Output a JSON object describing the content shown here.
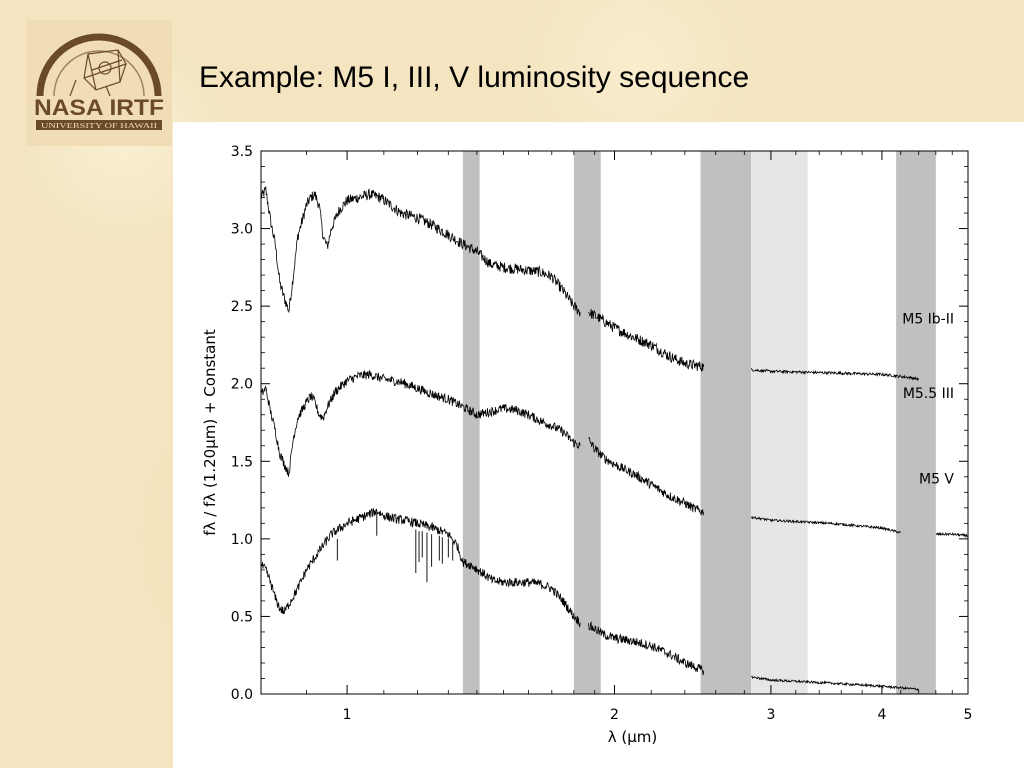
{
  "slide": {
    "title": "Example: M5 I, III, V luminosity sequence"
  },
  "logo": {
    "text": "NASA IRTF",
    "subtext": "UNIVERSITY OF HAWAII"
  },
  "colors": {
    "telluric_band": "#c0c0c0",
    "telluric_band_light": "#e6e6e6",
    "spectrum": "#000000",
    "logo_brown": "#6b4a2a"
  },
  "chart_data": {
    "type": "line",
    "title": "",
    "xlabel": "λ (μm)",
    "ylabel": "fλ / fλ (1.20μm) + Constant",
    "xscale": "log",
    "xlim": [
      0.8,
      5.0
    ],
    "ylim": [
      0.0,
      3.5
    ],
    "xticks": [
      1,
      2,
      3,
      4,
      5
    ],
    "xtick_labels": [
      "1",
      "2",
      "3",
      "4",
      "5"
    ],
    "yticks": [
      0.0,
      0.5,
      1.0,
      1.5,
      2.0,
      2.5,
      3.0,
      3.5
    ],
    "ytick_labels": [
      "0.0",
      "0.5",
      "1.0",
      "1.5",
      "2.0",
      "2.5",
      "3.0",
      "3.5"
    ],
    "grid": false,
    "legend": "none",
    "shaded_regions": [
      {
        "x": [
          1.35,
          1.41
        ],
        "shade": "dark"
      },
      {
        "x": [
          1.8,
          1.93
        ],
        "shade": "dark"
      },
      {
        "x": [
          2.5,
          2.85
        ],
        "shade": "dark"
      },
      {
        "x": [
          2.85,
          3.3
        ],
        "shade": "light"
      },
      {
        "x": [
          4.15,
          4.6
        ],
        "shade": "dark"
      }
    ],
    "series": [
      {
        "name": "M5 Ib-II",
        "noise": 0.035,
        "segments": [
          [
            [
              0.8,
              3.2
            ],
            [
              0.81,
              3.25
            ],
            [
              0.82,
              3.05
            ],
            [
              0.83,
              2.9
            ],
            [
              0.84,
              2.65
            ],
            [
              0.85,
              2.55
            ],
            [
              0.86,
              2.47
            ],
            [
              0.87,
              2.7
            ],
            [
              0.88,
              2.95
            ],
            [
              0.89,
              3.05
            ],
            [
              0.9,
              3.15
            ],
            [
              0.91,
              3.2
            ],
            [
              0.92,
              3.22
            ],
            [
              0.93,
              3.15
            ],
            [
              0.94,
              2.95
            ],
            [
              0.95,
              2.88
            ],
            [
              0.96,
              3.0
            ],
            [
              0.98,
              3.12
            ],
            [
              1.0,
              3.18
            ],
            [
              1.03,
              3.2
            ],
            [
              1.06,
              3.22
            ],
            [
              1.09,
              3.2
            ],
            [
              1.12,
              3.15
            ],
            [
              1.15,
              3.1
            ],
            [
              1.2,
              3.07
            ],
            [
              1.25,
              3.02
            ],
            [
              1.3,
              2.96
            ],
            [
              1.35,
              2.9
            ],
            [
              1.4,
              2.85
            ],
            [
              1.45,
              2.77
            ],
            [
              1.5,
              2.75
            ],
            [
              1.55,
              2.74
            ],
            [
              1.6,
              2.73
            ],
            [
              1.65,
              2.72
            ],
            [
              1.7,
              2.69
            ],
            [
              1.75,
              2.6
            ],
            [
              1.8,
              2.5
            ],
            [
              1.83,
              2.46
            ]
          ],
          [
            [
              1.87,
              2.46
            ],
            [
              1.9,
              2.44
            ],
            [
              1.95,
              2.4
            ],
            [
              2.0,
              2.36
            ],
            [
              2.1,
              2.3
            ],
            [
              2.2,
              2.25
            ],
            [
              2.3,
              2.18
            ],
            [
              2.4,
              2.13
            ],
            [
              2.45,
              2.12
            ],
            [
              2.52,
              2.11
            ]
          ],
          [
            [
              2.85,
              2.09
            ],
            [
              3.0,
              2.08
            ],
            [
              3.5,
              2.07
            ],
            [
              4.0,
              2.06
            ],
            [
              4.3,
              2.04
            ],
            [
              4.4,
              2.03
            ]
          ]
        ]
      },
      {
        "name": "M5.5 III",
        "noise": 0.03,
        "segments": [
          [
            [
              0.8,
              1.93
            ],
            [
              0.81,
              1.97
            ],
            [
              0.82,
              1.82
            ],
            [
              0.83,
              1.7
            ],
            [
              0.84,
              1.55
            ],
            [
              0.85,
              1.48
            ],
            [
              0.86,
              1.42
            ],
            [
              0.87,
              1.65
            ],
            [
              0.88,
              1.78
            ],
            [
              0.9,
              1.88
            ],
            [
              0.91,
              1.92
            ],
            [
              0.92,
              1.88
            ],
            [
              0.93,
              1.8
            ],
            [
              0.94,
              1.78
            ],
            [
              0.95,
              1.85
            ],
            [
              0.97,
              1.95
            ],
            [
              1.0,
              2.02
            ],
            [
              1.03,
              2.05
            ],
            [
              1.06,
              2.06
            ],
            [
              1.1,
              2.03
            ],
            [
              1.15,
              2.01
            ],
            [
              1.2,
              1.97
            ],
            [
              1.25,
              1.93
            ],
            [
              1.3,
              1.9
            ],
            [
              1.35,
              1.85
            ],
            [
              1.4,
              1.8
            ],
            [
              1.45,
              1.82
            ],
            [
              1.5,
              1.84
            ],
            [
              1.55,
              1.83
            ],
            [
              1.6,
              1.8
            ],
            [
              1.65,
              1.76
            ],
            [
              1.7,
              1.73
            ],
            [
              1.75,
              1.69
            ],
            [
              1.8,
              1.62
            ],
            [
              1.83,
              1.6
            ]
          ],
          [
            [
              1.87,
              1.64
            ],
            [
              1.9,
              1.58
            ],
            [
              1.95,
              1.52
            ],
            [
              2.0,
              1.48
            ],
            [
              2.1,
              1.42
            ],
            [
              2.2,
              1.35
            ],
            [
              2.3,
              1.28
            ],
            [
              2.4,
              1.23
            ],
            [
              2.45,
              1.2
            ],
            [
              2.52,
              1.17
            ]
          ],
          [
            [
              2.85,
              1.14
            ],
            [
              3.0,
              1.12
            ],
            [
              3.5,
              1.1
            ],
            [
              4.0,
              1.07
            ],
            [
              4.2,
              1.04
            ]
          ],
          [
            [
              4.6,
              1.03
            ],
            [
              4.8,
              1.03
            ],
            [
              5.0,
              1.02
            ]
          ]
        ]
      },
      {
        "name": "M5 V",
        "noise": 0.03,
        "segments": [
          [
            [
              0.8,
              0.83
            ],
            [
              0.81,
              0.8
            ],
            [
              0.82,
              0.72
            ],
            [
              0.83,
              0.62
            ],
            [
              0.84,
              0.55
            ],
            [
              0.85,
              0.53
            ],
            [
              0.86,
              0.58
            ],
            [
              0.88,
              0.68
            ],
            [
              0.9,
              0.8
            ],
            [
              0.93,
              0.92
            ],
            [
              0.96,
              1.03
            ],
            [
              1.0,
              1.1
            ],
            [
              1.03,
              1.13
            ],
            [
              1.06,
              1.16
            ],
            [
              1.08,
              1.18
            ],
            [
              1.1,
              1.15
            ],
            [
              1.13,
              1.13
            ],
            [
              1.16,
              1.12
            ],
            [
              1.2,
              1.1
            ],
            [
              1.25,
              1.07
            ],
            [
              1.3,
              1.03
            ],
            [
              1.33,
              0.96
            ],
            [
              1.35,
              0.85
            ],
            [
              1.38,
              0.83
            ],
            [
              1.42,
              0.78
            ],
            [
              1.46,
              0.73
            ],
            [
              1.5,
              0.72
            ],
            [
              1.55,
              0.72
            ],
            [
              1.6,
              0.72
            ],
            [
              1.65,
              0.71
            ],
            [
              1.7,
              0.68
            ],
            [
              1.75,
              0.6
            ],
            [
              1.8,
              0.5
            ],
            [
              1.83,
              0.46
            ]
          ],
          [
            [
              1.87,
              0.44
            ],
            [
              1.9,
              0.42
            ],
            [
              1.95,
              0.38
            ],
            [
              2.0,
              0.36
            ],
            [
              2.1,
              0.34
            ],
            [
              2.2,
              0.31
            ],
            [
              2.3,
              0.26
            ],
            [
              2.4,
              0.2
            ],
            [
              2.45,
              0.18
            ],
            [
              2.52,
              0.15
            ]
          ],
          [
            [
              2.85,
              0.11
            ],
            [
              3.0,
              0.09
            ],
            [
              3.5,
              0.07
            ],
            [
              4.0,
              0.05
            ],
            [
              4.4,
              0.03
            ]
          ]
        ]
      }
    ],
    "absorption_lines": [
      {
        "x": 1.195,
        "y_top": 1.06,
        "y_bottom": 0.78
      },
      {
        "x": 1.205,
        "y_top": 1.05,
        "y_bottom": 0.85
      },
      {
        "x": 1.215,
        "y_top": 1.05,
        "y_bottom": 0.88
      },
      {
        "x": 1.23,
        "y_top": 1.04,
        "y_bottom": 0.72
      },
      {
        "x": 1.245,
        "y_top": 1.03,
        "y_bottom": 0.82
      },
      {
        "x": 1.27,
        "y_top": 1.02,
        "y_bottom": 0.86
      },
      {
        "x": 1.28,
        "y_top": 1.01,
        "y_bottom": 0.84
      },
      {
        "x": 1.3,
        "y_top": 1.0,
        "y_bottom": 0.88
      },
      {
        "x": 1.315,
        "y_top": 0.98,
        "y_bottom": 0.86
      },
      {
        "x": 0.975,
        "y_top": 1.0,
        "y_bottom": 0.86
      },
      {
        "x": 1.08,
        "y_top": 1.17,
        "y_bottom": 1.02
      }
    ],
    "annotations": [
      {
        "text": "M5 Ib-II",
        "anchor_x": 5.0,
        "y": 2.42
      },
      {
        "text": "M5.5 III",
        "anchor_x": 5.0,
        "y": 1.94
      },
      {
        "text": "M5 V",
        "anchor_x": 5.0,
        "y": 1.39
      }
    ]
  }
}
